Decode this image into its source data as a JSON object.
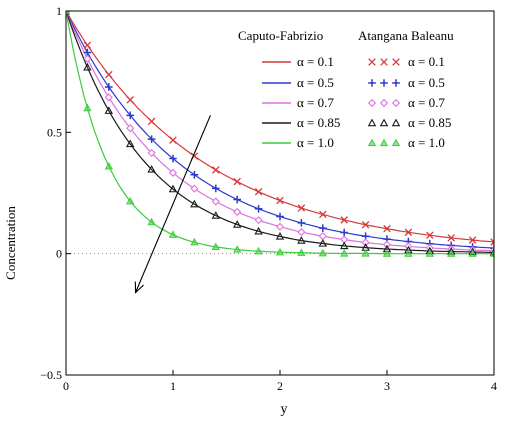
{
  "chart_data": {
    "type": "line",
    "xlabel": "y",
    "ylabel": "Concentration",
    "xlim": [
      0,
      4
    ],
    "ylim": [
      -0.5,
      1
    ],
    "xticks": [
      "0",
      "1",
      "2",
      "3",
      "4"
    ],
    "yticks": [
      "1",
      "0.5",
      "0",
      "−0.5"
    ],
    "legend": {
      "placement": "top-right",
      "header_left": "Caputo-Fabrizio",
      "header_right": "Atangana Baleanu"
    },
    "x": [
      0,
      0.2,
      0.4,
      0.6,
      0.8,
      1.0,
      1.2,
      1.4,
      1.6,
      1.8,
      2.0,
      2.2,
      2.4,
      2.6,
      2.8,
      3.0,
      3.2,
      3.4,
      3.6,
      3.8,
      4.0
    ],
    "series": [
      {
        "name": "α = 0.1",
        "method": "Caputo-Fabrizio",
        "style": "line",
        "color": "#d43a3a",
        "values": [
          1.0,
          0.859,
          0.738,
          0.634,
          0.545,
          0.468,
          0.402,
          0.345,
          0.297,
          0.255,
          0.219,
          0.188,
          0.162,
          0.139,
          0.119,
          0.103,
          0.088,
          0.076,
          0.065,
          0.056,
          0.048
        ]
      },
      {
        "name": "α = 0.5",
        "method": "Caputo-Fabrizio",
        "style": "line",
        "color": "#2a3ad0",
        "values": [
          1.0,
          0.829,
          0.687,
          0.57,
          0.472,
          0.392,
          0.325,
          0.269,
          0.223,
          0.185,
          0.153,
          0.127,
          0.105,
          0.087,
          0.072,
          0.06,
          0.05,
          0.041,
          0.034,
          0.028,
          0.023
        ]
      },
      {
        "name": "α = 0.7",
        "method": "Caputo-Fabrizio",
        "style": "line",
        "color": "#e070e0",
        "values": [
          1.0,
          0.803,
          0.644,
          0.517,
          0.415,
          0.333,
          0.268,
          0.215,
          0.172,
          0.138,
          0.111,
          0.089,
          0.072,
          0.058,
          0.046,
          0.037,
          0.03,
          0.024,
          0.019,
          0.015,
          0.012
        ]
      },
      {
        "name": "α = 0.85",
        "method": "Caputo-Fabrizio",
        "style": "line",
        "color": "#1a1a1a",
        "values": [
          1.0,
          0.768,
          0.589,
          0.452,
          0.347,
          0.266,
          0.204,
          0.157,
          0.12,
          0.092,
          0.071,
          0.054,
          0.042,
          0.032,
          0.025,
          0.019,
          0.015,
          0.011,
          0.009,
          0.007,
          0.005
        ]
      },
      {
        "name": "α = 1.0",
        "method": "Caputo-Fabrizio",
        "style": "line",
        "color": "#3ccc3c",
        "values": [
          1.0,
          0.6,
          0.36,
          0.216,
          0.13,
          0.078,
          0.047,
          0.028,
          0.017,
          0.01,
          0.006,
          0.004,
          0.002,
          0.001,
          0.001,
          0.0,
          0.0,
          0.0,
          0.0,
          0.0,
          0.0
        ]
      },
      {
        "name": "α = 0.1",
        "method": "Atangana Baleanu",
        "style": "markers",
        "marker": "x",
        "color": "#d43a3a",
        "values": [
          1.0,
          0.859,
          0.738,
          0.634,
          0.545,
          0.468,
          0.402,
          0.345,
          0.297,
          0.255,
          0.219,
          0.188,
          0.162,
          0.139,
          0.119,
          0.103,
          0.088,
          0.076,
          0.065,
          0.056,
          0.048
        ]
      },
      {
        "name": "α = 0.5",
        "method": "Atangana Baleanu",
        "style": "markers",
        "marker": "plus",
        "color": "#2a3ad0",
        "values": [
          1.0,
          0.829,
          0.687,
          0.57,
          0.472,
          0.392,
          0.325,
          0.269,
          0.223,
          0.185,
          0.153,
          0.127,
          0.105,
          0.087,
          0.072,
          0.06,
          0.05,
          0.041,
          0.034,
          0.028,
          0.023
        ]
      },
      {
        "name": "α = 0.7",
        "method": "Atangana Baleanu",
        "style": "markers",
        "marker": "diamond",
        "color": "#e070e0",
        "values": [
          1.0,
          0.803,
          0.644,
          0.517,
          0.415,
          0.333,
          0.268,
          0.215,
          0.172,
          0.138,
          0.111,
          0.089,
          0.072,
          0.058,
          0.046,
          0.037,
          0.03,
          0.024,
          0.019,
          0.015,
          0.012
        ]
      },
      {
        "name": "α = 0.85",
        "method": "Atangana Baleanu",
        "style": "markers",
        "marker": "triangle-open",
        "color": "#1a1a1a",
        "values": [
          1.0,
          0.768,
          0.589,
          0.452,
          0.347,
          0.266,
          0.204,
          0.157,
          0.12,
          0.092,
          0.071,
          0.054,
          0.042,
          0.032,
          0.025,
          0.019,
          0.015,
          0.011,
          0.009,
          0.007,
          0.005
        ]
      },
      {
        "name": "α = 1.0",
        "method": "Atangana Baleanu",
        "style": "markers",
        "marker": "triangle-filled",
        "color": "#3ccc3c",
        "values": [
          1.0,
          0.6,
          0.36,
          0.216,
          0.13,
          0.078,
          0.047,
          0.028,
          0.017,
          0.01,
          0.006,
          0.004,
          0.002,
          0.001,
          0.001,
          0.0,
          0.0,
          0.0,
          0.0,
          0.0,
          0.0
        ]
      }
    ],
    "annotations": [
      {
        "type": "arrow",
        "from": [
          1.35,
          0.57
        ],
        "to": [
          0.65,
          -0.16
        ],
        "meaning": "increasing alpha"
      }
    ]
  }
}
